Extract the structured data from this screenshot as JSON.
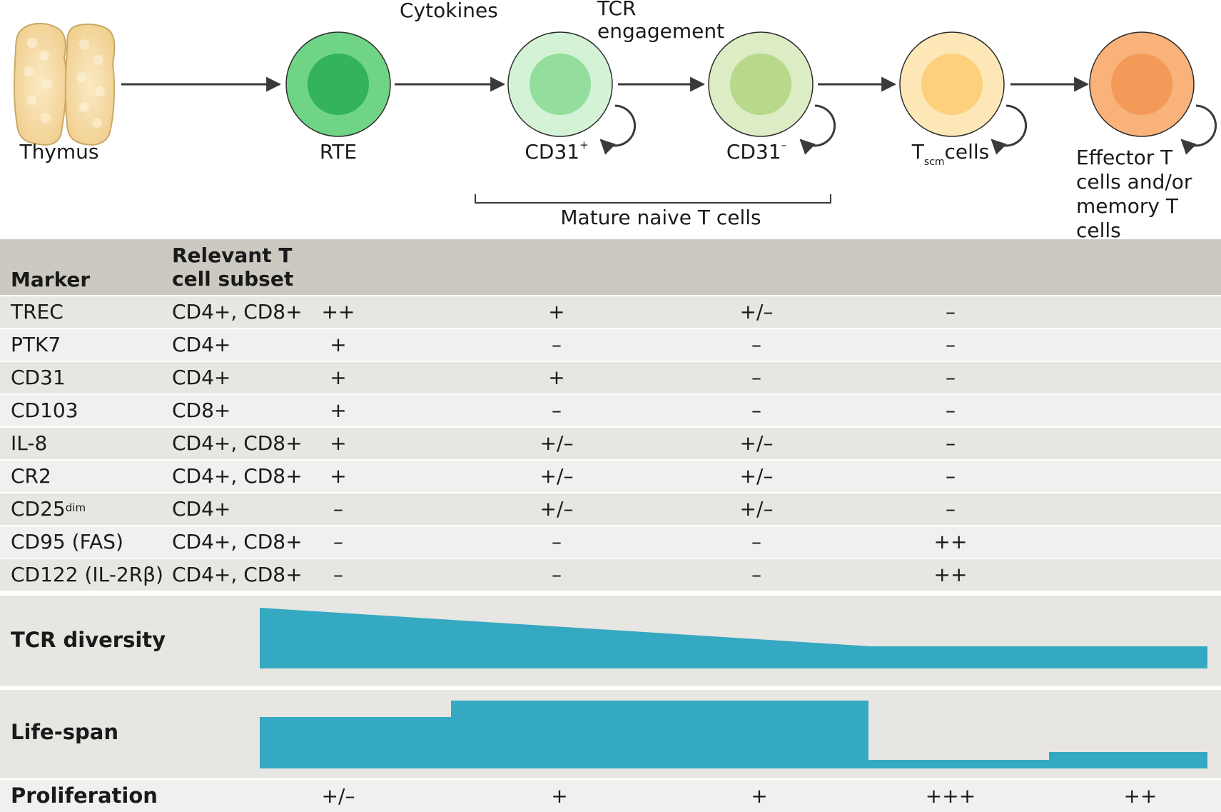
{
  "diagram": {
    "stages": [
      {
        "id": "thymus",
        "label": "Thymus",
        "sup": ""
      },
      {
        "id": "rte",
        "label": "RTE",
        "sup": ""
      },
      {
        "id": "cd31pos",
        "label": "CD31",
        "sup": "+"
      },
      {
        "id": "cd31neg",
        "label": "CD31",
        "sup": "–"
      },
      {
        "id": "tscm",
        "label": "T",
        "sub": "scm",
        "suffix": "cells"
      },
      {
        "id": "effector",
        "label": "Effector T cells and/or memory T cells"
      }
    ],
    "arrow_labels": {
      "cytokines": "Cytokines",
      "tcr": "TCR engagement"
    },
    "bracket_label": "Mature naive T cells",
    "colors": {
      "rte": "#3fbf63",
      "cd31pos": "#9fe0a6",
      "cd31neg": "#b9d98f",
      "tscm": "#fcd585",
      "effector": "#f5a263",
      "thymus": "#f8deaa",
      "arrow": "#3a3a3a",
      "teal": "#35a9c1"
    }
  },
  "table": {
    "headers": {
      "marker": "Marker",
      "subset": "Relevant T cell subset"
    },
    "rows": [
      {
        "marker": "TREC",
        "marker_sup": "",
        "subset": "CD4+, CD8+",
        "values": [
          "++",
          "+",
          "+/–",
          "–"
        ]
      },
      {
        "marker": "PTK7",
        "marker_sup": "",
        "subset": "CD4+",
        "values": [
          "+",
          "–",
          "–",
          "–"
        ]
      },
      {
        "marker": "CD31",
        "marker_sup": "",
        "subset": "CD4+",
        "values": [
          "+",
          "+",
          "–",
          "–"
        ]
      },
      {
        "marker": "CD103",
        "marker_sup": "",
        "subset": "CD8+",
        "values": [
          "+",
          "–",
          "–",
          "–"
        ]
      },
      {
        "marker": "IL-8",
        "marker_sup": "",
        "subset": "CD4+, CD8+",
        "values": [
          "+",
          "+/–",
          "+/–",
          "–"
        ]
      },
      {
        "marker": "CR2",
        "marker_sup": "",
        "subset": "CD4+, CD8+",
        "values": [
          "+",
          "+/–",
          "+/–",
          "–"
        ]
      },
      {
        "marker": "CD25",
        "marker_sup": "dim",
        "subset": "CD4+",
        "values": [
          "–",
          "+/–",
          "+/–",
          "–"
        ]
      },
      {
        "marker": "CD95 (FAS)",
        "marker_sup": "",
        "subset": "CD4+, CD8+",
        "values": [
          "–",
          "–",
          "–",
          "++"
        ]
      },
      {
        "marker": "CD122 (IL-2Rβ)",
        "marker_sup": "",
        "subset": "CD4+, CD8+",
        "values": [
          "–",
          "–",
          "–",
          "++"
        ]
      }
    ]
  },
  "bands": {
    "tcr_diversity": {
      "label": "TCR diversity"
    },
    "life_span": {
      "label": "Life-span"
    },
    "proliferation": {
      "label": "Proliferation",
      "values": [
        "+/–",
        "+",
        "+",
        "+++",
        "++"
      ]
    }
  }
}
